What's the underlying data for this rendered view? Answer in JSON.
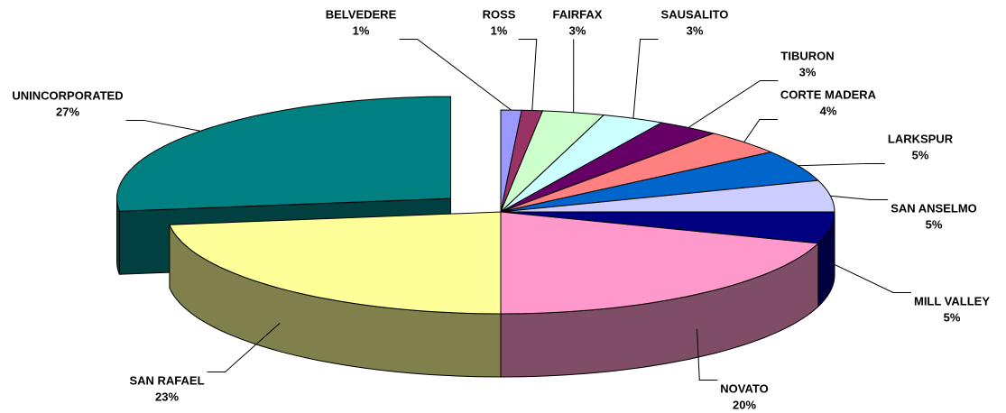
{
  "chart_data": {
    "type": "pie3d",
    "categories": [
      "BELVEDERE",
      "ROSS",
      "FAIRFAX",
      "SAUSALITO",
      "TIBURON",
      "CORTE MADERA",
      "LARKSPUR",
      "SAN ANSELMO",
      "MILL VALLEY",
      "NOVATO",
      "SAN RAFAEL",
      "UNINCORPORATED"
    ],
    "values": [
      1,
      1,
      3,
      3,
      3,
      4,
      5,
      5,
      5,
      20,
      23,
      27
    ],
    "value_labels": [
      "1%",
      "1%",
      "3%",
      "3%",
      "3%",
      "4%",
      "5%",
      "5%",
      "5%",
      "20%",
      "23%",
      "27%"
    ],
    "colors": [
      "#9999ff",
      "#993366",
      "#ccffcc",
      "#ccffff",
      "#660066",
      "#ff8080",
      "#0066cc",
      "#ccccff",
      "#000080",
      "#ff99cc",
      "#ffff99",
      "#008080"
    ],
    "explode": [
      0,
      0,
      0,
      0,
      0,
      0,
      0,
      0,
      0,
      0,
      0,
      0.2
    ]
  }
}
